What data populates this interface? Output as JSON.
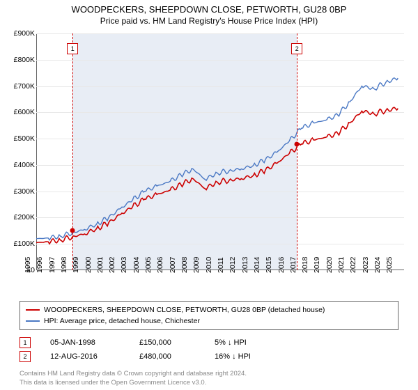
{
  "title": {
    "main": "WOODPECKERS, SHEEPDOWN CLOSE, PETWORTH, GU28 0BP",
    "sub": "Price paid vs. HM Land Registry's House Price Index (HPI)"
  },
  "chart": {
    "type": "line",
    "x_years": [
      1995,
      1996,
      1997,
      1998,
      1999,
      2000,
      2001,
      2002,
      2003,
      2004,
      2005,
      2006,
      2007,
      2008,
      2009,
      2010,
      2011,
      2012,
      2013,
      2014,
      2015,
      2016,
      2017,
      2018,
      2019,
      2020,
      2021,
      2022,
      2023,
      2024,
      2025
    ],
    "xlim": [
      1995,
      2025.5
    ],
    "ylim": [
      0,
      900
    ],
    "y_ticks": [
      0,
      100,
      200,
      300,
      400,
      500,
      600,
      700,
      800,
      900
    ],
    "y_tick_labels": [
      "£0",
      "£100K",
      "£200K",
      "£300K",
      "£400K",
      "£500K",
      "£600K",
      "£700K",
      "£800K",
      "£900K"
    ],
    "shade_range": [
      1998.0,
      2016.6
    ],
    "shade_color": "#e8edf5",
    "series": [
      {
        "id": "hpi",
        "label": "HPI: Average price, detached house, Chichester",
        "color": "#4a78c4",
        "width": 1.4,
        "y": [
          120,
          122,
          130,
          142,
          155,
          175,
          200,
          235,
          268,
          300,
          320,
          335,
          362,
          385,
          345,
          370,
          378,
          385,
          398,
          420,
          450,
          492,
          540,
          560,
          570,
          590,
          640,
          700,
          690,
          715,
          730
        ]
      },
      {
        "id": "price",
        "label": "WOODPECKERS, SHEEPDOWN CLOSE, PETWORTH, GU28 0BP (detached house)",
        "color": "#cc0000",
        "width": 1.6,
        "y": [
          105,
          108,
          115,
          127,
          138,
          158,
          180,
          212,
          242,
          270,
          288,
          302,
          325,
          348,
          310,
          335,
          342,
          348,
          360,
          380,
          408,
          445,
          480,
          495,
          505,
          520,
          560,
          605,
          595,
          608,
          615
        ]
      }
    ],
    "markers": [
      {
        "n": "1",
        "year": 1998.02
      },
      {
        "n": "2",
        "year": 2016.62
      }
    ],
    "sale_points": [
      {
        "year": 1998.02,
        "value": 150
      },
      {
        "year": 2016.62,
        "value": 480
      }
    ]
  },
  "legend": {
    "items": [
      {
        "color": "#cc0000",
        "label": "WOODPECKERS, SHEEPDOWN CLOSE, PETWORTH, GU28 0BP (detached house)"
      },
      {
        "color": "#4a78c4",
        "label": "HPI: Average price, detached house, Chichester"
      }
    ]
  },
  "sales": [
    {
      "n": "1",
      "date": "05-JAN-1998",
      "price": "£150,000",
      "diff": "5% ↓ HPI"
    },
    {
      "n": "2",
      "date": "12-AUG-2016",
      "price": "£480,000",
      "diff": "16% ↓ HPI"
    }
  ],
  "footer": {
    "line1": "Contains HM Land Registry data © Crown copyright and database right 2024.",
    "line2": "This data is licensed under the Open Government Licence v3.0."
  }
}
